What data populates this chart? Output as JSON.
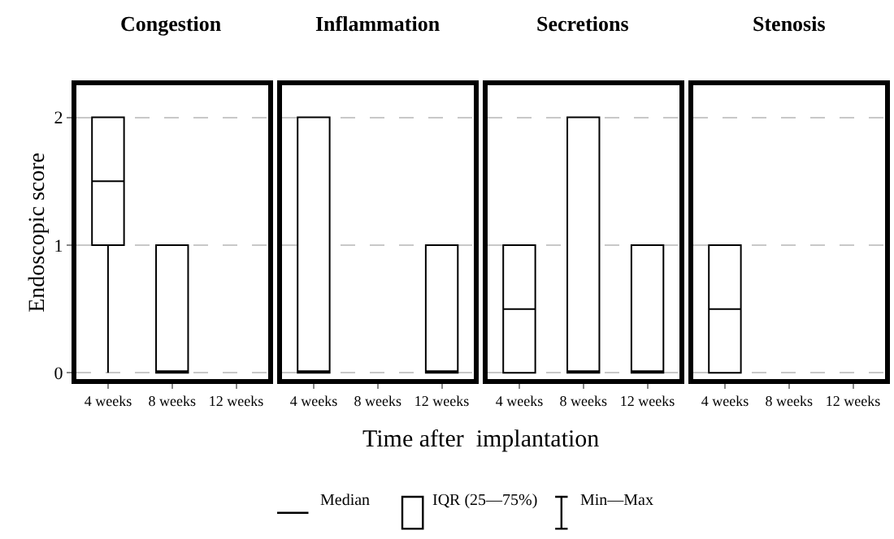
{
  "chart_data": [
    {
      "type": "box",
      "title": "Congestion",
      "ylabel": "Endoscopic score",
      "xlabel": "Time after  implantation",
      "categories": [
        "4 weeks",
        "8 weeks",
        "12 weeks"
      ],
      "ylim": [
        -0.05,
        2.25
      ],
      "yticks": [
        0,
        1,
        2
      ],
      "grid": "y",
      "tick_labels": "xy",
      "annotations": [
        "Median",
        "IQR (25—75%)",
        "Min—Max"
      ],
      "boxes": [
        {
          "low": 0,
          "q1": 1,
          "median": 1.5,
          "q3": 2,
          "high": 2
        },
        {
          "low": 0,
          "q1": 0,
          "median": 0,
          "q3": 1,
          "high": 1
        },
        null
      ]
    },
    {
      "type": "box",
      "title": "Inflammation",
      "categories": [
        "4 weeks",
        "8 weeks",
        "12 weeks"
      ],
      "ylim": [
        -0.05,
        2.25
      ],
      "yticks": [
        0,
        1,
        2
      ],
      "grid": "y",
      "tick_labels": "x",
      "boxes": [
        {
          "low": 0,
          "q1": 0,
          "median": 0,
          "q3": 2,
          "high": 2
        },
        null,
        {
          "low": 0,
          "q1": 0,
          "median": 0,
          "q3": 1,
          "high": 1
        }
      ]
    },
    {
      "type": "box",
      "title": "Secretions",
      "categories": [
        "4 weeks",
        "8 weeks",
        "12 weeks"
      ],
      "ylim": [
        -0.05,
        2.25
      ],
      "yticks": [
        0,
        1,
        2
      ],
      "grid": "y",
      "tick_labels": "x",
      "boxes": [
        {
          "low": 0,
          "q1": 0,
          "median": 0.5,
          "q3": 1,
          "high": 1
        },
        {
          "low": 0,
          "q1": 0,
          "median": 0,
          "q3": 2,
          "high": 2
        },
        {
          "low": 0,
          "q1": 0,
          "median": 0,
          "q3": 1,
          "high": 1
        }
      ]
    },
    {
      "type": "box",
      "title": "Stenosis",
      "categories": [
        "4 weeks",
        "8 weeks",
        "12 weeks"
      ],
      "ylim": [
        -0.05,
        2.25
      ],
      "yticks": [
        0,
        1,
        2
      ],
      "grid": "y",
      "tick_labels": "x",
      "boxes": [
        {
          "low": 0,
          "q1": 0,
          "median": 0.5,
          "q3": 1,
          "high": 1
        },
        null,
        null
      ]
    }
  ]
}
